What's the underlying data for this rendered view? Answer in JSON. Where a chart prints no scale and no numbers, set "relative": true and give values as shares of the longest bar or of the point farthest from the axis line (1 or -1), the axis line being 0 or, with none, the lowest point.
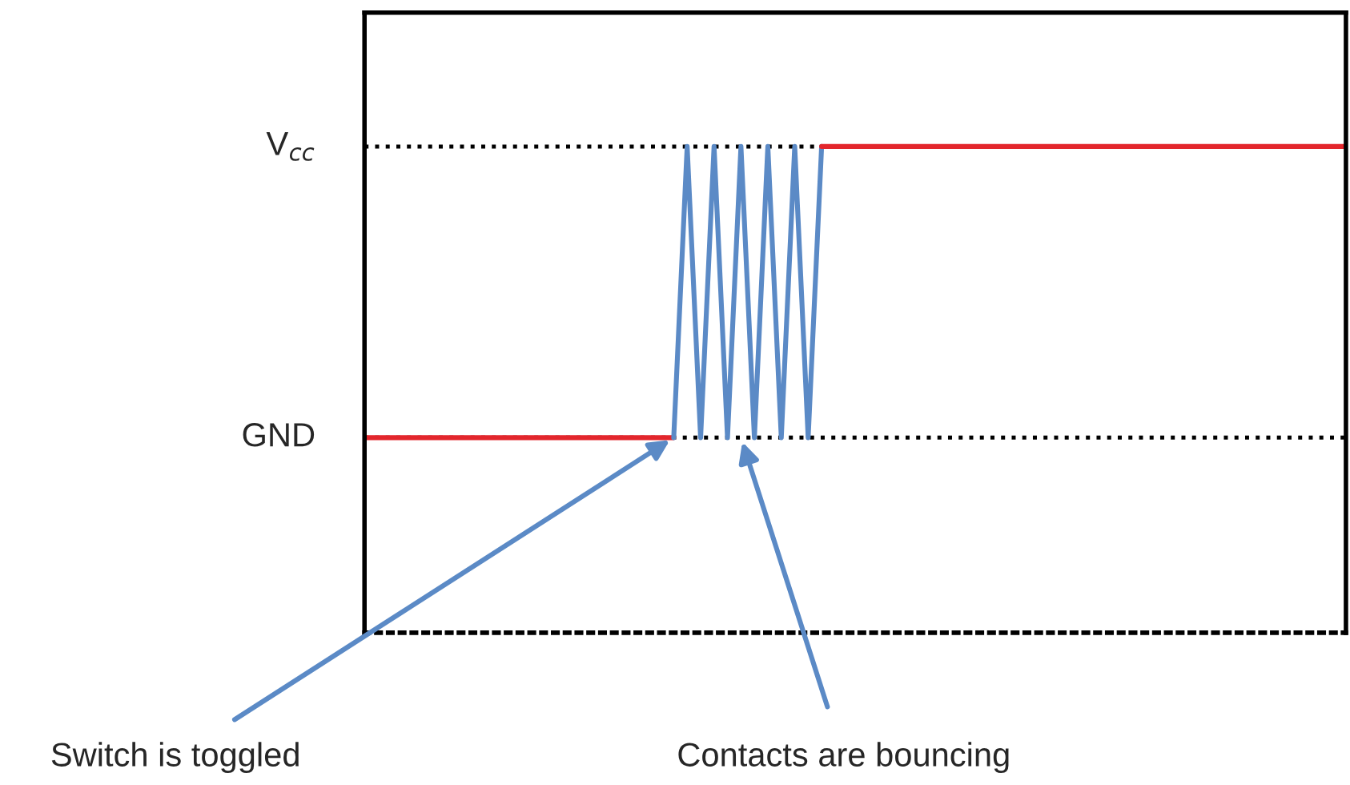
{
  "chart_data": {
    "type": "line",
    "categories": [
      null,
      null,
      null,
      null,
      null,
      null,
      null,
      null,
      null,
      null,
      null,
      null,
      null,
      null,
      null,
      null,
      null,
      null,
      null,
      null,
      null,
      null,
      null,
      null,
      null,
      null,
      null,
      null,
      null,
      null,
      null,
      null,
      null,
      null,
      null,
      null,
      null,
      null,
      null,
      null,
      null,
      null,
      null,
      null,
      null,
      null,
      null,
      null,
      null,
      null,
      null,
      null,
      null,
      null,
      null,
      null,
      null,
      null,
      null,
      null,
      null,
      null,
      null,
      null,
      null,
      null,
      null,
      null,
      null,
      null,
      null,
      null,
      null,
      null
    ],
    "series": [
      {
        "color": "#e3262c",
        "values": [
          0,
          0,
          0,
          0,
          0,
          0,
          0,
          0,
          0,
          0,
          0,
          0,
          0,
          0,
          0,
          0,
          0,
          0,
          0,
          0,
          0,
          0,
          0,
          0,
          null,
          null,
          null,
          null,
          null,
          null,
          null,
          null,
          null,
          null,
          null,
          null,
          null,
          null,
          null,
          null,
          null,
          null,
          null,
          null,
          null,
          null,
          null,
          null,
          null,
          null,
          null,
          null,
          null,
          null,
          null,
          null,
          null,
          null,
          null,
          null,
          null,
          null,
          null,
          null,
          null,
          null,
          null,
          null,
          null,
          null,
          null,
          null,
          null,
          null
        ]
      },
      {
        "color": "#5b8ac6",
        "values": [
          null,
          null,
          null,
          null,
          null,
          null,
          null,
          null,
          null,
          null,
          null,
          null,
          null,
          null,
          null,
          null,
          null,
          null,
          null,
          null,
          null,
          null,
          null,
          0,
          1,
          0,
          1,
          0,
          1,
          0,
          1,
          0,
          1,
          0,
          1,
          null,
          null,
          null,
          null,
          null,
          null,
          null,
          null,
          null,
          null,
          null,
          null,
          null,
          null,
          null,
          null,
          null,
          null,
          null,
          null,
          null,
          null,
          null,
          null,
          null,
          null,
          null,
          null,
          null,
          null,
          null,
          null,
          null,
          null,
          null,
          null,
          null,
          null,
          null
        ]
      },
      {
        "color": "#e3262c",
        "values": [
          null,
          null,
          null,
          null,
          null,
          null,
          null,
          null,
          null,
          null,
          null,
          null,
          null,
          null,
          null,
          null,
          null,
          null,
          null,
          null,
          null,
          null,
          null,
          null,
          null,
          null,
          null,
          null,
          null,
          null,
          null,
          null,
          null,
          null,
          1,
          1,
          1,
          1,
          1,
          1,
          1,
          1,
          1,
          1,
          1,
          1,
          1,
          1,
          1,
          1,
          1,
          1,
          1,
          1,
          1,
          1,
          1,
          1,
          1,
          1,
          1,
          1,
          1,
          1,
          1,
          1,
          1,
          1,
          1,
          1,
          1,
          1,
          1,
          1
        ]
      }
    ],
    "relative": true,
    "ref_lines": [
      {
        "axis": "y",
        "value": 1,
        "label": "V$_{cc}$",
        "color": "#000000",
        "line_style": "dotted"
      },
      {
        "axis": "y",
        "value": 0,
        "label": "GND",
        "color": "#000000",
        "line_style": "dotted"
      }
    ],
    "annotations": [
      "Switch is toggled",
      "Contacts are bouncing"
    ],
    "legend": false,
    "grid": false,
    "marker": "none",
    "line_style": "solid"
  }
}
